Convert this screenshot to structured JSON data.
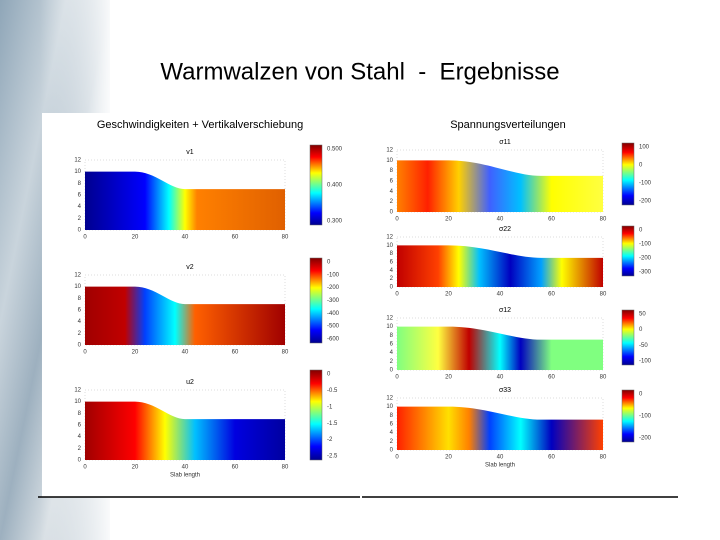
{
  "title": "Warmwalzen von Stahl  -  Ergebnisse",
  "left": {
    "heading": "Geschwindigkeiten + Vertikalverschiebung",
    "x_ticks": [
      "0",
      "20",
      "40",
      "60",
      "80"
    ],
    "y_ticks": [
      "12",
      "10",
      "8",
      "6",
      "4",
      "2",
      "0"
    ],
    "x_label": "Slab length",
    "panels": [
      {
        "label": "v1",
        "colorbar": [
          "0.500",
          "0.400",
          "0.300"
        ]
      },
      {
        "label": "v2",
        "colorbar": [
          "0",
          "-100",
          "-200",
          "-300",
          "-400",
          "-500",
          "-600"
        ]
      },
      {
        "label": "u2",
        "colorbar": [
          "0",
          "-0.5",
          "-1",
          "-1.5",
          "-2",
          "-2.5"
        ]
      }
    ]
  },
  "right": {
    "heading": "Spannungsverteilungen",
    "x_ticks": [
      "0",
      "20",
      "40",
      "60",
      "80"
    ],
    "y_ticks": [
      "12",
      "10",
      "8",
      "6",
      "4",
      "2",
      "0"
    ],
    "x_label": "Slab length",
    "panels": [
      {
        "label": "σ11",
        "colorbar": [
          "100",
          "0",
          "-100",
          "-200"
        ]
      },
      {
        "label": "σ22",
        "colorbar": [
          "0",
          "-100",
          "-200",
          "-300"
        ]
      },
      {
        "label": "σ12",
        "colorbar": [
          "50",
          "0",
          "-50",
          "-100"
        ]
      },
      {
        "label": "σ33",
        "colorbar": [
          "0",
          "-100",
          "-200"
        ]
      }
    ]
  }
}
